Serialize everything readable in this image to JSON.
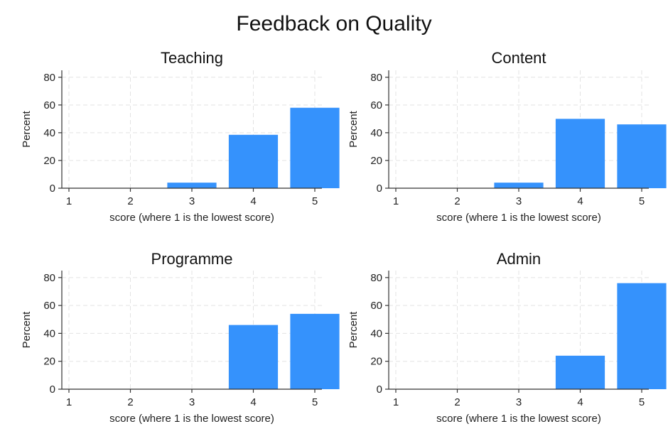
{
  "figure": {
    "title": "Feedback on Quality",
    "bar_color": "#3592fc"
  },
  "chart_data": [
    {
      "type": "bar",
      "title": "Teaching",
      "xlabel": "score (where 1 is the lowest score)",
      "ylabel": "Percent",
      "categories": [
        "1",
        "2",
        "3",
        "4",
        "5"
      ],
      "values": [
        0,
        0,
        4,
        38.5,
        58
      ],
      "ylim": [
        0,
        85
      ],
      "yticks": [
        0,
        20,
        40,
        60,
        80
      ],
      "grid": true
    },
    {
      "type": "bar",
      "title": "Content",
      "xlabel": "score (where 1 is the lowest score)",
      "ylabel": "Percent",
      "categories": [
        "1",
        "2",
        "3",
        "4",
        "5"
      ],
      "values": [
        0,
        0,
        4,
        50,
        46
      ],
      "ylim": [
        0,
        85
      ],
      "yticks": [
        0,
        20,
        40,
        60,
        80
      ],
      "grid": true
    },
    {
      "type": "bar",
      "title": "Programme",
      "xlabel": "score (where 1 is the lowest score)",
      "ylabel": "Percent",
      "categories": [
        "1",
        "2",
        "3",
        "4",
        "5"
      ],
      "values": [
        0,
        0,
        0,
        46,
        54
      ],
      "ylim": [
        0,
        85
      ],
      "yticks": [
        0,
        20,
        40,
        60,
        80
      ],
      "grid": true
    },
    {
      "type": "bar",
      "title": "Admin",
      "xlabel": "score (where 1 is the lowest score)",
      "ylabel": "Percent",
      "categories": [
        "1",
        "2",
        "3",
        "4",
        "5"
      ],
      "values": [
        0,
        0,
        0,
        24,
        76
      ],
      "ylim": [
        0,
        85
      ],
      "yticks": [
        0,
        20,
        40,
        60,
        80
      ],
      "grid": true
    }
  ]
}
